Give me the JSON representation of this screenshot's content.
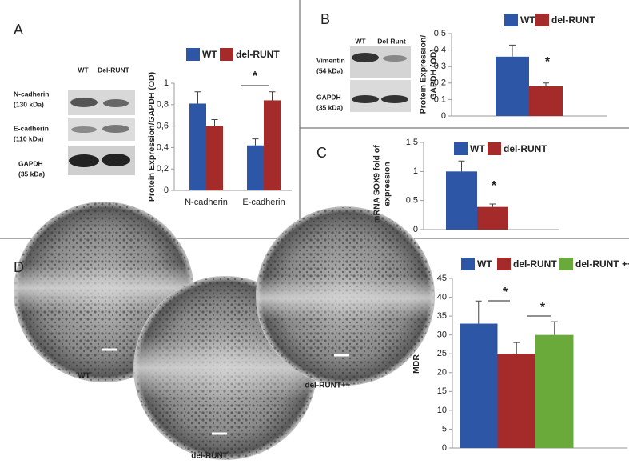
{
  "panels": [
    {
      "letter": "A",
      "lanes": [
        "WT",
        "Del-RUNT"
      ],
      "blots": [
        [
          "N-cadherin",
          "(130 kDa)"
        ],
        [
          "E-cadherin",
          "(110 kDa)"
        ],
        [
          "GAPDH",
          "(35 kDa)"
        ]
      ]
    },
    {
      "letter": "B",
      "lanes": [
        "WT",
        "Del-Runt"
      ],
      "blots": [
        [
          "Vimentin",
          "(54 kDa)"
        ],
        [
          "GAPDH",
          "(35 kDa)"
        ]
      ]
    },
    {
      "letter": "C"
    },
    {
      "letter": "D",
      "images": [
        "WT",
        "del-RUNT",
        "del-RUNT++"
      ]
    }
  ],
  "chart_data": [
    {
      "type": "bar",
      "ylabel": "Protein Expression/GAPDH (OD)",
      "categories": [
        "N-cadherin",
        "E-cadherin"
      ],
      "series": [
        {
          "name": "WT",
          "color": "#2e56a6",
          "values": [
            0.81,
            0.42
          ],
          "errors": [
            0.11,
            0.06
          ]
        },
        {
          "name": "del-RUNT",
          "color": "#a52a2a",
          "values": [
            0.6,
            0.84
          ],
          "errors": [
            0.06,
            0.08
          ]
        }
      ],
      "ylim": [
        0,
        1
      ],
      "yticks": [
        0,
        {
          "value": 0.2,
          "label": "0,2"
        },
        {
          "value": 0.4,
          "label": "0,4"
        },
        {
          "value": 0.6,
          "label": "0,6"
        },
        {
          "value": 0.8,
          "label": "0,8"
        },
        1
      ],
      "annotations": [
        "*"
      ]
    },
    {
      "type": "bar",
      "ylabel": [
        "Protein Expression/",
        "GAPDH (OD)"
      ],
      "categories": [
        null
      ],
      "series": [
        {
          "name": "WT",
          "color": "#2e56a6",
          "values": [
            0.36
          ],
          "errors": [
            0.07
          ]
        },
        {
          "name": "del-RUNT",
          "color": "#a52a2a",
          "values": [
            0.18
          ],
          "errors": [
            0.02
          ]
        }
      ],
      "ylim": [
        0,
        0.5
      ],
      "yticks": [
        0,
        {
          "value": 0.1,
          "label": "0,1"
        },
        {
          "value": 0.2,
          "label": "0,2"
        },
        {
          "value": 0.3,
          "label": "0,3"
        },
        {
          "value": 0.4,
          "label": "0,4"
        },
        {
          "value": 0.5,
          "label": "0,5"
        }
      ],
      "annotations": [
        "*"
      ]
    },
    {
      "type": "bar",
      "ylabel": [
        "mRNA SOX9 fold of",
        "expression"
      ],
      "categories": [
        null
      ],
      "series": [
        {
          "name": "WT",
          "color": "#2e56a6",
          "values": [
            1.0
          ],
          "errors": [
            0.18
          ]
        },
        {
          "name": "del-RUNT",
          "color": "#a52a2a",
          "values": [
            0.39
          ],
          "errors": [
            0.05
          ]
        }
      ],
      "ylim": [
        0,
        1.5
      ],
      "yticks": [
        0,
        {
          "value": 0.5,
          "label": "0,5"
        },
        1,
        {
          "value": 1.5,
          "label": "1,5"
        }
      ],
      "annotations": [
        "*"
      ]
    },
    {
      "type": "bar",
      "ylabel": "MDR",
      "categories": [
        null
      ],
      "series": [
        {
          "name": "WT",
          "color": "#2e56a6",
          "values": [
            33
          ],
          "errors": [
            6
          ]
        },
        {
          "name": "del-RUNT",
          "color": "#a52a2a",
          "values": [
            25
          ],
          "errors": [
            3
          ]
        },
        {
          "name": "del-RUNT ++",
          "color": "#6aaa3a",
          "values": [
            30
          ],
          "errors": [
            3.5
          ]
        }
      ],
      "ylim": [
        0,
        45
      ],
      "yticks": [
        0,
        5,
        10,
        15,
        20,
        25,
        30,
        35,
        40,
        45
      ],
      "annotations": [
        "*",
        "*"
      ]
    }
  ]
}
